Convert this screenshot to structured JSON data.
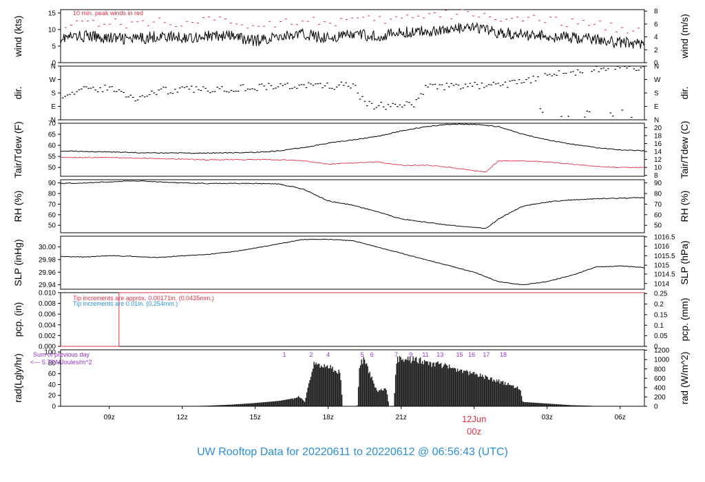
{
  "caption": "UW Rooftop Data for 20220611  to  20220612 @ 06:56:43  (UTC)",
  "colors": {
    "series": "#000000",
    "red": "#e0304a",
    "blue": "#2b8fd6",
    "purple": "#9b30d9",
    "frame": "#000000"
  },
  "x_axis": {
    "tick_labels": [
      "09z",
      "12z",
      "15z",
      "18z",
      "21z",
      "00z",
      "03z",
      "06z"
    ],
    "tick_hours": [
      9,
      12,
      15,
      18,
      21,
      24,
      27,
      30
    ],
    "range_hours": [
      7,
      31
    ],
    "date_label": "12Jun",
    "date_hour": 24
  },
  "chart_data": [
    {
      "id": "wind",
      "type": "line",
      "left_label": "wind (kts)",
      "right_label": "wind (m/s)",
      "ylim": [
        0,
        16
      ],
      "left_ticks": [
        "0",
        "5",
        "10",
        "15"
      ],
      "left_tick_values": [
        0,
        5,
        10,
        15
      ],
      "right_ticks": [
        "0",
        "2",
        "4",
        "6",
        "8"
      ],
      "right_tick_values": [
        0,
        3.89,
        7.78,
        11.66,
        15.55
      ],
      "annotation": "10 min. peak winds in red",
      "series": [
        {
          "name": "wind",
          "style": "line",
          "x": [
            7,
            8,
            9,
            10,
            11,
            12,
            13,
            14,
            15,
            16,
            17,
            18,
            19,
            20,
            21,
            22,
            23,
            24,
            25,
            26,
            27,
            28,
            29,
            30,
            31
          ],
          "y": [
            7.5,
            8,
            7.5,
            7,
            8,
            7.5,
            8,
            8,
            6.5,
            8,
            8.5,
            7.5,
            8.5,
            8,
            9,
            9.5,
            10,
            10.5,
            9,
            8.5,
            8,
            7.5,
            7,
            6,
            6
          ]
        },
        {
          "style": "peak-dashes",
          "color": "red",
          "x": [
            7,
            8,
            9,
            10,
            11,
            12,
            13,
            14,
            15,
            16,
            17,
            18,
            19,
            20,
            21,
            22,
            23,
            24,
            25,
            26,
            27,
            28,
            29,
            30,
            31
          ],
          "y": [
            12,
            12.5,
            12,
            11.5,
            12.5,
            12,
            12.5,
            12.5,
            11,
            12.5,
            13,
            12,
            13,
            12.5,
            13.5,
            14,
            14.5,
            15,
            13.5,
            13,
            12.5,
            12,
            11.5,
            10.5,
            10
          ]
        }
      ]
    },
    {
      "id": "dir",
      "type": "scatter",
      "left_label": "dir.",
      "right_label": "dir.",
      "ylim": [
        0,
        360
      ],
      "left_ticks": [
        "N",
        "E",
        "S",
        "W",
        "N"
      ],
      "left_tick_values": [
        0,
        90,
        180,
        270,
        360
      ],
      "right_ticks": [
        "N",
        "E",
        "S",
        "W",
        "N"
      ],
      "right_tick_values": [
        0,
        90,
        180,
        270,
        360
      ],
      "series": [
        {
          "name": "wind direction",
          "style": "points",
          "x": [
            7,
            8,
            9,
            10,
            11,
            12,
            13,
            14,
            15,
            16,
            17,
            18,
            19,
            19.5,
            20,
            21,
            21.5,
            22,
            23,
            24,
            25,
            26,
            27,
            28,
            29,
            30,
            31
          ],
          "y": [
            170,
            200,
            215,
            140,
            195,
            200,
            205,
            210,
            220,
            225,
            230,
            225,
            230,
            100,
            95,
            90,
            110,
            220,
            225,
            230,
            230,
            260,
            290,
            320,
            345,
            350,
            355
          ]
        }
      ]
    },
    {
      "id": "temp",
      "type": "line",
      "left_label": "Tair/Tdew (F)",
      "right_label": "Tair/Tdew (C)",
      "ylim": [
        46,
        70
      ],
      "left_ticks": [
        "50",
        "55",
        "60",
        "65",
        "70"
      ],
      "left_tick_values": [
        50,
        55,
        60,
        65,
        70
      ],
      "right_ticks": [
        "8",
        "10",
        "12",
        "14",
        "16",
        "18",
        "20"
      ],
      "right_tick_values": [
        46.4,
        50,
        53.6,
        57.2,
        60.8,
        64.4,
        68
      ],
      "series": [
        {
          "name": "Tair",
          "style": "line",
          "x": [
            7,
            9,
            11,
            13,
            15,
            16,
            17,
            18,
            19,
            20,
            21,
            22,
            23,
            24,
            25,
            26,
            27,
            28,
            29,
            30,
            31
          ],
          "y": [
            57.5,
            57,
            56.5,
            56.5,
            56.8,
            57.5,
            59,
            61,
            62.5,
            64,
            66.5,
            68.5,
            69.5,
            69.5,
            68.5,
            65,
            62.5,
            60.5,
            59,
            58,
            57.5
          ]
        },
        {
          "name": "Tdew",
          "style": "line",
          "color": "red",
          "x": [
            7,
            9,
            11,
            13,
            15,
            16,
            17,
            18,
            19,
            20,
            21,
            22,
            23,
            24,
            24.5,
            25,
            26,
            27,
            28,
            29,
            30,
            31
          ],
          "y": [
            54.5,
            54.5,
            54,
            53.5,
            53.5,
            53.5,
            53,
            51.5,
            52,
            52.5,
            51,
            51,
            50,
            48.5,
            48,
            53,
            53,
            52.5,
            51.5,
            50.5,
            50,
            50
          ]
        }
      ]
    },
    {
      "id": "rh",
      "type": "line",
      "left_label": "RH (%)",
      "right_label": "RH (%)",
      "ylim": [
        43,
        93
      ],
      "left_ticks": [
        "50",
        "60",
        "70",
        "80",
        "90"
      ],
      "left_tick_values": [
        50,
        60,
        70,
        80,
        90
      ],
      "right_ticks": [
        "50",
        "60",
        "70",
        "80",
        "90"
      ],
      "right_tick_values": [
        50,
        60,
        70,
        80,
        90
      ],
      "series": [
        {
          "name": "RH",
          "style": "line",
          "x": [
            7,
            8,
            9,
            10,
            11,
            12,
            13,
            14,
            15,
            16,
            17,
            18,
            19,
            20,
            21,
            22,
            23,
            24,
            24.5,
            25,
            26,
            27,
            28,
            29,
            30,
            31
          ],
          "y": [
            89.5,
            90,
            91,
            92,
            91,
            90,
            89.5,
            89.5,
            89.5,
            89,
            84,
            73,
            69,
            63,
            56,
            53,
            50,
            48,
            47,
            56,
            68,
            72,
            74,
            75,
            75.5,
            76
          ]
        }
      ]
    },
    {
      "id": "slp",
      "type": "line",
      "left_label": "SLP (inHg)",
      "right_label": "SLP (hPa)",
      "ylim": [
        29.933,
        30.017
      ],
      "left_ticks": [
        "29.94",
        "29.96",
        "29.98",
        "30.00"
      ],
      "left_tick_values": [
        29.94,
        29.96,
        29.98,
        30.0
      ],
      "right_ticks": [
        "1014",
        "1014.5",
        "1015",
        "1015.5",
        "1016",
        "1016.5"
      ],
      "right_tick_values": [
        29.942,
        29.957,
        29.971,
        29.986,
        30.001,
        30.016
      ],
      "series": [
        {
          "name": "SLP",
          "style": "line",
          "x": [
            7,
            8,
            9,
            10,
            11,
            12,
            13,
            14,
            15,
            16,
            17,
            18,
            19,
            20,
            21,
            22,
            23,
            24,
            25,
            26,
            27,
            28,
            29,
            30,
            31
          ],
          "y": [
            29.985,
            29.984,
            29.986,
            29.985,
            29.983,
            29.986,
            29.988,
            29.992,
            29.998,
            30.005,
            30.012,
            30.012,
            30.01,
            30.0,
            29.99,
            29.98,
            29.97,
            29.96,
            29.945,
            29.94,
            29.945,
            29.955,
            29.968,
            29.97,
            29.967
          ]
        }
      ]
    },
    {
      "id": "pcp",
      "type": "line",
      "left_label": "pcp. (in)",
      "right_label": "pcp. (mm)",
      "ylim": [
        0,
        0.01
      ],
      "left_ticks": [
        "0.000",
        "0.002",
        "0.004",
        "0.006",
        "0.008",
        "0.010"
      ],
      "left_tick_values": [
        0,
        0.002,
        0.004,
        0.006,
        0.008,
        0.01
      ],
      "right_ticks": [
        "0",
        "0.05",
        "0.1",
        "0.15",
        "0.2",
        "0.25"
      ],
      "right_tick_values": [
        0,
        0.00197,
        0.00394,
        0.0059,
        0.00787,
        0.00984
      ],
      "notes": [
        "Tip increments are approx. 0.00171in. (0.0435mm.)",
        "Tip increments are 0.01in. (0.254mm.)"
      ],
      "series": [
        {
          "name": "precip",
          "style": "step",
          "color": "red",
          "x": [
            7,
            9.4,
            9.4,
            31
          ],
          "y": [
            0,
            0,
            0.01,
            0.01
          ]
        }
      ]
    },
    {
      "id": "rad",
      "type": "area",
      "left_label": "rad(Lgly/hr)",
      "right_label": "rad (W/m^2)",
      "ylim": [
        0,
        104
      ],
      "left_ticks": [
        "0",
        "20",
        "40",
        "60",
        "80",
        "100"
      ],
      "left_tick_values": [
        0,
        20,
        40,
        60,
        80,
        100
      ],
      "right_ticks": [
        "0",
        "200",
        "400",
        "600",
        "800",
        "1000",
        "1200"
      ],
      "right_tick_values": [
        0,
        17.2,
        34.4,
        51.6,
        68.8,
        86.0,
        103.2
      ],
      "notes": [
        "Sum of previous day",
        "<--- 5.78 MJoules/m^2"
      ],
      "markers": [
        "1",
        "2",
        "4",
        "5",
        "6",
        "7",
        "9",
        "11",
        "13",
        "15",
        "16",
        "17",
        "18"
      ],
      "marker_hours": [
        16.2,
        17.3,
        18.0,
        19.4,
        19.8,
        20.8,
        21.4,
        22.0,
        22.6,
        23.4,
        23.9,
        24.5,
        25.2
      ],
      "series": [
        {
          "name": "solar radiation",
          "style": "area",
          "x": [
            11.9,
            13,
            14,
            15,
            16,
            16.5,
            16.8,
            17.0,
            17.0,
            17.4,
            17.6,
            18.0,
            18.2,
            18.5,
            18.6,
            19.2,
            19.3,
            19.5,
            20.0,
            20.4,
            20.5,
            20.7,
            20.8,
            21.2,
            21.6,
            22.0,
            22.6,
            23.2,
            23.8,
            24.4,
            25.0,
            25.5,
            25.9,
            26.0,
            27.0,
            28.0,
            28.8,
            29.0
          ],
          "y": [
            0,
            1,
            3,
            6,
            10,
            14,
            20,
            10,
            0,
            85,
            80,
            82,
            75,
            68,
            0,
            0,
            88,
            92,
            30,
            35,
            0,
            0,
            92,
            95,
            92,
            88,
            82,
            75,
            67,
            59,
            50,
            42,
            35,
            8,
            5,
            2,
            1,
            0
          ]
        }
      ]
    }
  ]
}
